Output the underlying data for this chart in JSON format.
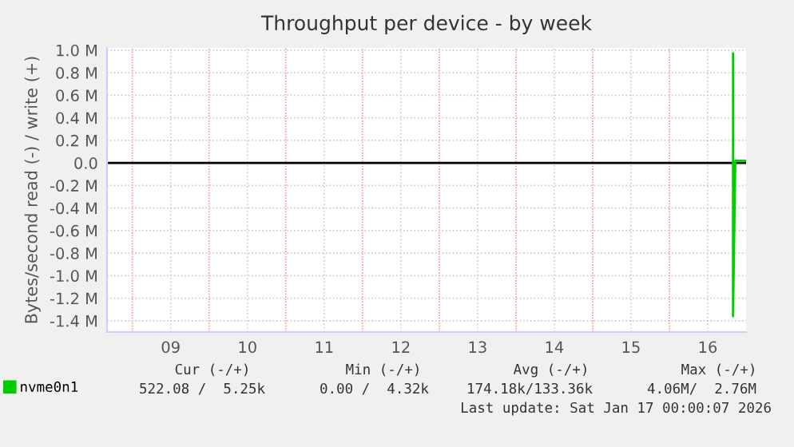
{
  "chart_data": {
    "type": "line",
    "title": "Throughput per device - by week",
    "ylabel": "Bytes/second read (-) / write (+)",
    "series": [
      {
        "name": "nvme0n1",
        "color": "#00cc00",
        "x": [
          16.83,
          16.83,
          16.86,
          17.0
        ],
        "values": [
          970000,
          -1360000,
          20000,
          20000
        ]
      }
    ],
    "xlim": [
      8.67,
      17.0
    ],
    "xticks": [
      {
        "value": 9,
        "label": null
      },
      {
        "value": 9.5,
        "label": "09"
      },
      {
        "value": 10,
        "label": null
      },
      {
        "value": 10.5,
        "label": "10"
      },
      {
        "value": 11,
        "label": null
      },
      {
        "value": 11.5,
        "label": "11"
      },
      {
        "value": 12,
        "label": null
      },
      {
        "value": 12.5,
        "label": "12"
      },
      {
        "value": 13,
        "label": null
      },
      {
        "value": 13.5,
        "label": "13"
      },
      {
        "value": 14,
        "label": null
      },
      {
        "value": 14.5,
        "label": "14"
      },
      {
        "value": 15,
        "label": null
      },
      {
        "value": 15.5,
        "label": "15"
      },
      {
        "value": 16,
        "label": null
      },
      {
        "value": 16.5,
        "label": "16"
      }
    ],
    "ylim": [
      -1500000,
      1020000
    ],
    "yticks": [
      {
        "value": -1400000,
        "label": "-1.4 M"
      },
      {
        "value": -1200000,
        "label": "-1.2 M"
      },
      {
        "value": -1000000,
        "label": "-1.0 M"
      },
      {
        "value": -800000,
        "label": "-0.8 M"
      },
      {
        "value": -600000,
        "label": "-0.6 M"
      },
      {
        "value": -400000,
        "label": "-0.4 M"
      },
      {
        "value": -200000,
        "label": "-0.2 M"
      },
      {
        "value": 0,
        "label": "0.0"
      },
      {
        "value": 200000,
        "label": "0.2 M"
      },
      {
        "value": 400000,
        "label": "0.4 M"
      },
      {
        "value": 600000,
        "label": "0.6 M"
      },
      {
        "value": 800000,
        "label": "0.8 M"
      },
      {
        "value": 1000000,
        "label": "1.0 M"
      }
    ],
    "ref_lines": [
      {
        "axis": "y",
        "value": 0,
        "color": "#000000"
      }
    ],
    "grid": true,
    "legend": "bottom left",
    "marker": "none",
    "line_style": "solid",
    "annotations": [
      "Cur (-/+)",
      "Min (-/+)",
      "Avg (-/+)",
      "Max (-/+)",
      "522.08 /  5.25k",
      "0.00 /  4.32k",
      "174.18k/133.36k",
      "4.06M/  2.76M",
      "Last update: Sat Jan 17 00:00:07 2026"
    ]
  }
}
